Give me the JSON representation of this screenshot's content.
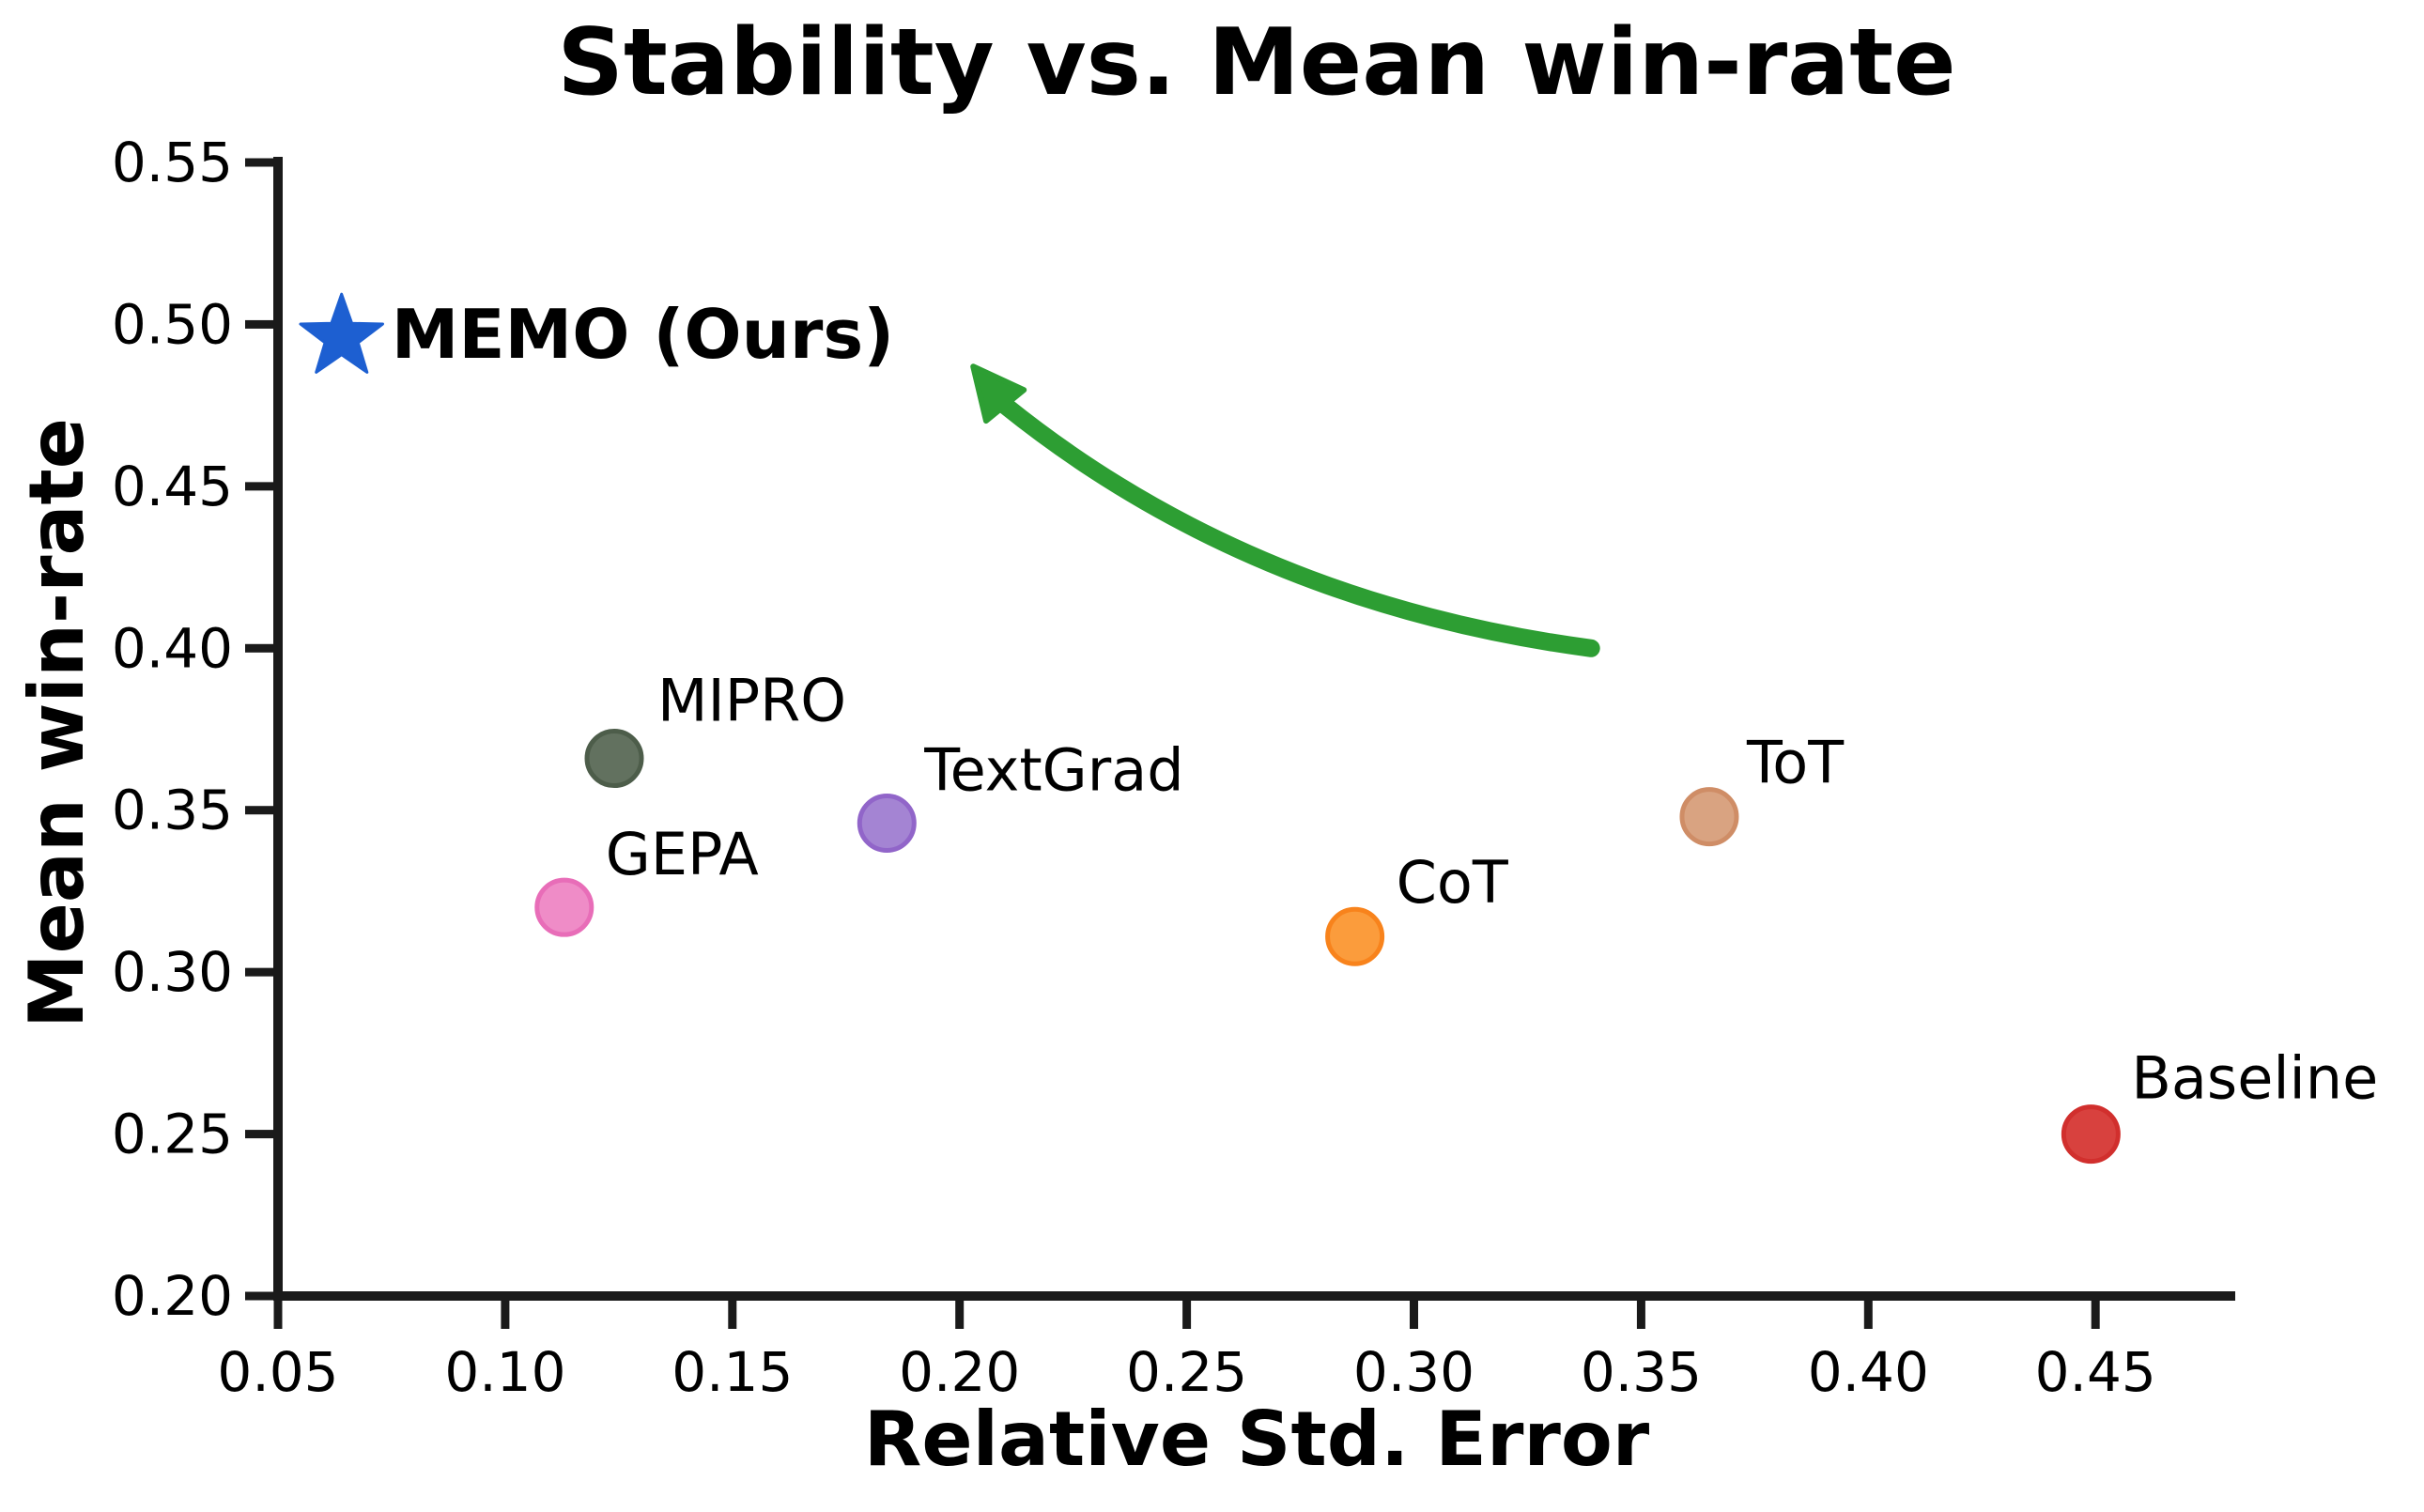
{
  "figure": {
    "background": "#ffffff",
    "axis_color": "#1a1a1a"
  },
  "chart_data": {
    "type": "scatter",
    "title": "Stability vs. Mean win-rate",
    "xlabel": "Relative Std. Error",
    "ylabel": "Mean win-rate",
    "xlim": [
      0.05,
      0.481
    ],
    "ylim": [
      0.2,
      0.55
    ],
    "x_ticks": [
      0.05,
      0.1,
      0.15,
      0.2,
      0.25,
      0.3,
      0.35,
      0.4,
      0.45
    ],
    "y_ticks": [
      0.2,
      0.25,
      0.3,
      0.35,
      0.4,
      0.45,
      0.5,
      0.55
    ],
    "tick_decimals": 2,
    "grid": false,
    "legend_position": "none (points labeled directly)",
    "series": [
      {
        "name": "MEMO (Ours)",
        "x": 0.064,
        "y": 0.496,
        "marker": "star",
        "color": "#1d5fd1",
        "fill": "#1d5fd1",
        "emphasis": true,
        "label_offset": [
          53,
          22
        ]
      },
      {
        "name": "MIPRO",
        "x": 0.124,
        "y": 0.366,
        "marker": "circle",
        "color": "#4d5d4a",
        "fill": "#62715f",
        "emphasis": false,
        "label_offset": [
          46,
          -40
        ]
      },
      {
        "name": "GEPA",
        "x": 0.113,
        "y": 0.32,
        "marker": "circle",
        "color": "#e86db8",
        "fill": "#ef8cc7",
        "emphasis": false,
        "label_offset": [
          44,
          -35
        ]
      },
      {
        "name": "TextGrad",
        "x": 0.184,
        "y": 0.346,
        "marker": "circle",
        "color": "#9165c9",
        "fill": "#a484d3",
        "emphasis": false,
        "label_offset": [
          40,
          -35
        ]
      },
      {
        "name": "CoT",
        "x": 0.287,
        "y": 0.311,
        "marker": "circle",
        "color": "#f8831c",
        "fill": "#fb9c3c",
        "emphasis": false,
        "label_offset": [
          44,
          -36
        ]
      },
      {
        "name": "ToT",
        "x": 0.365,
        "y": 0.348,
        "marker": "circle",
        "color": "#cf8d66",
        "fill": "#d9a381",
        "emphasis": false,
        "label_offset": [
          40,
          -36
        ]
      },
      {
        "name": "Baseline",
        "x": 0.449,
        "y": 0.25,
        "marker": "circle",
        "color": "#d12f2d",
        "fill": "#d8413e",
        "emphasis": false,
        "label_offset": [
          43,
          -38
        ]
      }
    ],
    "annotation_arrow": {
      "color": "#2d9e33",
      "curved": true,
      "tail": {
        "x": 0.339,
        "y": 0.4
      },
      "control": {
        "x": 0.264,
        "y": 0.414
      },
      "head": {
        "x": 0.21,
        "y": 0.475
      },
      "tip": {
        "x": 0.203,
        "y": 0.487
      }
    }
  }
}
